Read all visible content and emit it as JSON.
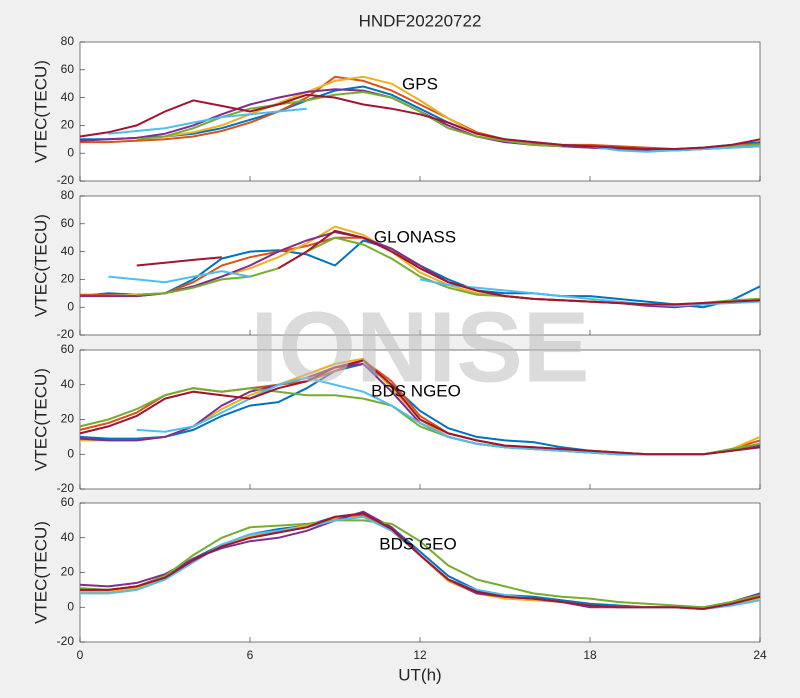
{
  "watermark": "IONISE",
  "chart_data": [
    {
      "type": "line",
      "title": "HNDF20220722",
      "ylabel": "VTEC(TECU)",
      "annotation": "GPS",
      "xlim": [
        0,
        24
      ],
      "xticks": [
        0,
        6,
        12,
        18,
        24
      ],
      "ylim": [
        -20,
        80
      ],
      "yticks": [
        -20,
        0,
        20,
        40,
        60,
        80
      ],
      "x": [
        0,
        1,
        2,
        3,
        4,
        5,
        6,
        7,
        8,
        9,
        10,
        11,
        12,
        13,
        14,
        15,
        16,
        17,
        18,
        19,
        20,
        21,
        22,
        23,
        24
      ],
      "series": [
        {
          "color": "#0072BD",
          "values": [
            10,
            10,
            11,
            12,
            14,
            18,
            24,
            30,
            38,
            45,
            48,
            42,
            32,
            22,
            14,
            10,
            8,
            6,
            5,
            4,
            3,
            3,
            4,
            6,
            8
          ]
        },
        {
          "color": "#D95319",
          "values": [
            8,
            8,
            9,
            10,
            12,
            16,
            22,
            30,
            40,
            55,
            52,
            45,
            35,
            25,
            15,
            10,
            7,
            6,
            6,
            5,
            4,
            3,
            3,
            5,
            7
          ]
        },
        {
          "color": "#EDB120",
          "values": [
            null,
            null,
            null,
            12,
            15,
            20,
            28,
            36,
            44,
            52,
            55,
            50,
            38,
            25,
            14,
            9,
            6,
            5,
            4,
            3,
            2,
            2,
            3,
            5,
            6
          ]
        },
        {
          "color": "#7E2F8E",
          "values": [
            9,
            10,
            11,
            14,
            20,
            28,
            35,
            40,
            44,
            46,
            45,
            40,
            30,
            20,
            12,
            8,
            6,
            5,
            4,
            3,
            2,
            2,
            3,
            4,
            5
          ]
        },
        {
          "color": "#77AC30",
          "values": [
            null,
            null,
            10,
            12,
            18,
            26,
            32,
            35,
            38,
            42,
            44,
            40,
            30,
            18,
            12,
            9,
            6,
            5,
            null,
            null,
            3,
            2,
            3,
            5,
            6
          ]
        },
        {
          "color": "#4DBEEE",
          "values": [
            null,
            14,
            16,
            18,
            22,
            26,
            28,
            30,
            32,
            null,
            null,
            null,
            null,
            null,
            null,
            10,
            8,
            6,
            5,
            2,
            1,
            2,
            3,
            4,
            5
          ]
        },
        {
          "color": "#A2142F",
          "values": [
            12,
            15,
            20,
            30,
            38,
            34,
            30,
            35,
            42,
            40,
            35,
            32,
            28,
            22,
            14,
            10,
            8,
            6,
            5,
            4,
            3,
            3,
            4,
            6,
            10
          ]
        }
      ]
    },
    {
      "type": "line",
      "ylabel": "VTEC(TECU)",
      "annotation": "GLONASS",
      "xlim": [
        0,
        24
      ],
      "xticks": [
        0,
        6,
        12,
        18,
        24
      ],
      "ylim": [
        -20,
        80
      ],
      "yticks": [
        -20,
        0,
        20,
        40,
        60,
        80
      ],
      "x": [
        0,
        1,
        2,
        3,
        4,
        5,
        6,
        7,
        8,
        9,
        10,
        11,
        12,
        13,
        14,
        15,
        16,
        17,
        18,
        19,
        20,
        21,
        22,
        23,
        24
      ],
      "series": [
        {
          "color": "#0072BD",
          "values": [
            8,
            10,
            9,
            10,
            20,
            35,
            40,
            41,
            38,
            30,
            48,
            42,
            30,
            20,
            12,
            10,
            10,
            8,
            8,
            6,
            4,
            2,
            0,
            5,
            15
          ]
        },
        {
          "color": "#D95319",
          "values": [
            9,
            9,
            8,
            10,
            18,
            30,
            36,
            40,
            44,
            50,
            50,
            42,
            28,
            18,
            12,
            8,
            6,
            5,
            4,
            3,
            2,
            1,
            2,
            4,
            6
          ]
        },
        {
          "color": "#EDB120",
          "values": [
            null,
            8,
            9,
            10,
            15,
            22,
            28,
            36,
            46,
            58,
            52,
            40,
            25,
            16,
            10,
            8,
            6,
            5,
            4,
            3,
            2,
            2,
            3,
            4,
            5
          ]
        },
        {
          "color": "#7E2F8E",
          "values": [
            8,
            8,
            8,
            10,
            15,
            22,
            30,
            40,
            48,
            54,
            50,
            42,
            30,
            18,
            12,
            8,
            6,
            5,
            4,
            3,
            1,
            0,
            2,
            4,
            5
          ]
        },
        {
          "color": "#77AC30",
          "values": [
            null,
            null,
            9,
            10,
            14,
            20,
            22,
            28,
            40,
            50,
            45,
            35,
            22,
            14,
            9,
            8,
            6,
            5,
            4,
            3,
            2,
            2,
            3,
            5,
            6
          ]
        },
        {
          "color": "#4DBEEE",
          "values": [
            null,
            22,
            20,
            18,
            22,
            26,
            22,
            null,
            null,
            null,
            null,
            null,
            20,
            16,
            14,
            12,
            10,
            8,
            6,
            4,
            2,
            1,
            2,
            3,
            4
          ]
        },
        {
          "color": "#A2142F",
          "values": [
            null,
            null,
            30,
            32,
            34,
            36,
            null,
            28,
            40,
            55,
            50,
            40,
            28,
            18,
            12,
            8,
            6,
            5,
            4,
            3,
            2,
            2,
            3,
            4,
            5
          ]
        }
      ]
    },
    {
      "type": "line",
      "ylabel": "VTEC(TECU)",
      "annotation": "BDS NGEO",
      "xlim": [
        0,
        24
      ],
      "xticks": [
        0,
        6,
        12,
        18,
        24
      ],
      "ylim": [
        -20,
        60
      ],
      "yticks": [
        -20,
        0,
        20,
        40,
        60
      ],
      "x": [
        0,
        1,
        2,
        3,
        4,
        5,
        6,
        7,
        8,
        9,
        10,
        11,
        12,
        13,
        14,
        15,
        16,
        17,
        18,
        19,
        20,
        21,
        22,
        23,
        24
      ],
      "series": [
        {
          "color": "#0072BD",
          "values": [
            10,
            9,
            9,
            10,
            14,
            22,
            28,
            30,
            38,
            48,
            52,
            40,
            25,
            15,
            10,
            8,
            7,
            4,
            2,
            1,
            0,
            0,
            0,
            2,
            6
          ]
        },
        {
          "color": "#D95319",
          "values": [
            14,
            18,
            24,
            34,
            38,
            36,
            38,
            40,
            42,
            48,
            54,
            42,
            22,
            12,
            8,
            5,
            4,
            3,
            2,
            1,
            0,
            0,
            0,
            3,
            8
          ]
        },
        {
          "color": "#EDB120",
          "values": [
            8,
            8,
            8,
            10,
            16,
            26,
            34,
            40,
            46,
            52,
            55,
            38,
            20,
            10,
            6,
            4,
            3,
            2,
            1,
            0,
            0,
            0,
            0,
            3,
            10
          ]
        },
        {
          "color": "#7E2F8E",
          "values": [
            9,
            8,
            8,
            10,
            16,
            28,
            36,
            40,
            44,
            50,
            52,
            36,
            18,
            10,
            6,
            4,
            3,
            2,
            1,
            0,
            0,
            0,
            0,
            2,
            5
          ]
        },
        {
          "color": "#77AC30",
          "values": [
            16,
            20,
            26,
            34,
            38,
            36,
            38,
            36,
            34,
            34,
            32,
            28,
            16,
            10,
            6,
            4,
            3,
            2,
            1,
            0,
            0,
            0,
            0,
            3,
            6
          ]
        },
        {
          "color": "#4DBEEE",
          "values": [
            null,
            null,
            14,
            13,
            16,
            24,
            32,
            40,
            44,
            40,
            36,
            28,
            18,
            10,
            6,
            4,
            3,
            2,
            1,
            0,
            0,
            0,
            0,
            2,
            4
          ]
        },
        {
          "color": "#A2142F",
          "values": [
            12,
            16,
            22,
            32,
            36,
            34,
            32,
            38,
            42,
            50,
            54,
            40,
            20,
            12,
            8,
            5,
            4,
            3,
            2,
            1,
            0,
            0,
            0,
            2,
            4
          ]
        }
      ]
    },
    {
      "type": "line",
      "ylabel": "VTEC(TECU)",
      "annotation": "BDS GEO",
      "xlabel": "UT(h)",
      "xlim": [
        0,
        24
      ],
      "xticks": [
        0,
        6,
        12,
        18,
        24
      ],
      "ylim": [
        -20,
        60
      ],
      "yticks": [
        -20,
        0,
        20,
        40,
        60
      ],
      "x": [
        0,
        1,
        2,
        3,
        4,
        5,
        6,
        7,
        8,
        9,
        10,
        11,
        12,
        13,
        14,
        15,
        16,
        17,
        18,
        19,
        20,
        21,
        22,
        23,
        24
      ],
      "series": [
        {
          "color": "#0072BD",
          "values": [
            10,
            10,
            12,
            18,
            28,
            36,
            42,
            45,
            47,
            52,
            54,
            46,
            32,
            18,
            10,
            7,
            6,
            4,
            2,
            1,
            0,
            0,
            -1,
            2,
            6
          ]
        },
        {
          "color": "#D95319",
          "values": [
            9,
            9,
            11,
            17,
            27,
            35,
            40,
            43,
            46,
            52,
            53,
            45,
            30,
            16,
            9,
            6,
            5,
            3,
            1,
            0,
            0,
            0,
            -1,
            2,
            5
          ]
        },
        {
          "color": "#EDB120",
          "values": [
            9,
            9,
            11,
            16,
            26,
            36,
            41,
            44,
            47,
            51,
            52,
            44,
            30,
            15,
            8,
            5,
            4,
            3,
            1,
            0,
            0,
            0,
            -1,
            1,
            5
          ]
        },
        {
          "color": "#7E2F8E",
          "values": [
            13,
            12,
            14,
            19,
            28,
            34,
            38,
            40,
            44,
            50,
            55,
            46,
            30,
            16,
            8,
            6,
            5,
            3,
            0,
            0,
            0,
            0,
            0,
            3,
            8
          ]
        },
        {
          "color": "#77AC30",
          "values": [
            11,
            10,
            12,
            18,
            30,
            40,
            46,
            47,
            48,
            50,
            50,
            48,
            38,
            24,
            16,
            12,
            8,
            6,
            5,
            3,
            2,
            1,
            0,
            3,
            7
          ]
        },
        {
          "color": "#4DBEEE",
          "values": [
            8,
            8,
            10,
            16,
            26,
            36,
            42,
            44,
            46,
            50,
            52,
            44,
            30,
            16,
            10,
            7,
            5,
            3,
            1,
            0,
            0,
            0,
            -1,
            1,
            4
          ]
        },
        {
          "color": "#A2142F",
          "values": [
            10,
            10,
            12,
            17,
            27,
            35,
            40,
            43,
            46,
            52,
            54,
            45,
            30,
            16,
            9,
            6,
            5,
            3,
            1,
            0,
            0,
            0,
            -1,
            2,
            6
          ]
        }
      ]
    }
  ]
}
